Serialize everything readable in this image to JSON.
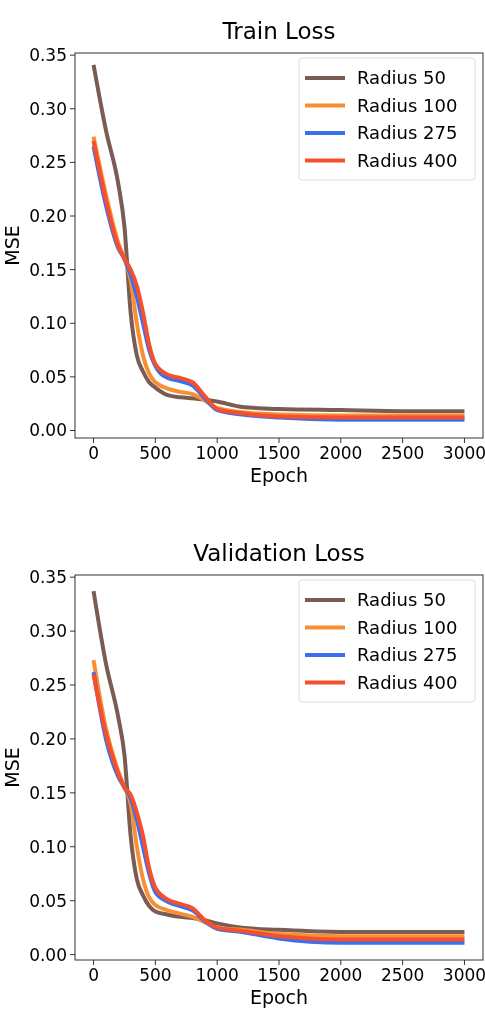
{
  "chart_data": [
    {
      "type": "line",
      "title": "Train Loss",
      "xlabel": "Epoch",
      "ylabel": "MSE",
      "x": [
        0,
        100,
        200,
        250,
        300,
        350,
        400,
        450,
        500,
        600,
        700,
        800,
        900,
        1000,
        1200,
        1500,
        2000,
        2500,
        3000
      ],
      "xlim": [
        -150,
        3150
      ],
      "xticks": [
        0,
        500,
        1000,
        1500,
        2000,
        2500,
        3000
      ],
      "ylim": [
        -0.007,
        0.352
      ],
      "yticks": [
        {
          "value": 0,
          "label": "0.00"
        },
        {
          "value": 0.05,
          "label": "0.05"
        },
        {
          "value": 0.1,
          "label": "0.10"
        },
        {
          "value": 0.15,
          "label": "0.15"
        },
        {
          "value": 0.2,
          "label": "0.20"
        },
        {
          "value": 0.25,
          "label": "0.25"
        },
        {
          "value": 0.3,
          "label": "0.30"
        },
        {
          "value": 0.35,
          "label": "0.35"
        }
      ],
      "grid": false,
      "legend": "top right",
      "series": [
        {
          "name": "Radius 50",
          "color": "#7a5c55",
          "values": [
            0.341,
            0.28,
            0.23,
            0.19,
            0.11,
            0.07,
            0.055,
            0.045,
            0.04,
            0.033,
            0.031,
            0.03,
            0.029,
            0.027,
            0.022,
            0.02,
            0.019,
            0.018,
            0.018
          ]
        },
        {
          "name": "Radius 100",
          "color": "#f98f33",
          "values": [
            0.274,
            0.22,
            0.175,
            0.16,
            0.14,
            0.1,
            0.07,
            0.053,
            0.045,
            0.039,
            0.036,
            0.034,
            0.028,
            0.021,
            0.017,
            0.015,
            0.014,
            0.014,
            0.014
          ]
        },
        {
          "name": "Radius 275",
          "color": "#3a70ee",
          "values": [
            0.265,
            0.21,
            0.17,
            0.16,
            0.145,
            0.125,
            0.1,
            0.075,
            0.06,
            0.049,
            0.046,
            0.042,
            0.03,
            0.019,
            0.015,
            0.012,
            0.01,
            0.01,
            0.01
          ]
        },
        {
          "name": "Radius 400",
          "color": "#f4502e",
          "values": [
            0.27,
            0.215,
            0.172,
            0.16,
            0.15,
            0.135,
            0.11,
            0.08,
            0.062,
            0.052,
            0.049,
            0.045,
            0.032,
            0.02,
            0.016,
            0.013,
            0.012,
            0.012,
            0.012
          ]
        }
      ]
    },
    {
      "type": "line",
      "title": "Validation Loss",
      "xlabel": "Epoch",
      "ylabel": "MSE",
      "x": [
        0,
        100,
        200,
        250,
        300,
        350,
        400,
        450,
        500,
        600,
        700,
        800,
        900,
        1000,
        1200,
        1500,
        2000,
        2500,
        3000
      ],
      "xlim": [
        -150,
        3150
      ],
      "xticks": [
        0,
        500,
        1000,
        1500,
        2000,
        2500,
        3000
      ],
      "ylim": [
        -0.005,
        0.352
      ],
      "yticks": [
        {
          "value": 0,
          "label": "0.00"
        },
        {
          "value": 0.05,
          "label": "0.05"
        },
        {
          "value": 0.1,
          "label": "0.10"
        },
        {
          "value": 0.15,
          "label": "0.15"
        },
        {
          "value": 0.2,
          "label": "0.20"
        },
        {
          "value": 0.25,
          "label": "0.25"
        },
        {
          "value": 0.3,
          "label": "0.30"
        },
        {
          "value": 0.35,
          "label": "0.35"
        }
      ],
      "grid": false,
      "legend": "top right",
      "series": [
        {
          "name": "Radius 50",
          "color": "#7a5c55",
          "values": [
            0.337,
            0.27,
            0.22,
            0.185,
            0.11,
            0.07,
            0.055,
            0.045,
            0.04,
            0.037,
            0.035,
            0.034,
            0.032,
            0.029,
            0.025,
            0.023,
            0.021,
            0.021,
            0.021
          ]
        },
        {
          "name": "Radius 100",
          "color": "#f98f33",
          "values": [
            0.273,
            0.21,
            0.17,
            0.155,
            0.14,
            0.1,
            0.07,
            0.053,
            0.046,
            0.041,
            0.038,
            0.035,
            0.03,
            0.025,
            0.023,
            0.019,
            0.017,
            0.017,
            0.017
          ]
        },
        {
          "name": "Radius 275",
          "color": "#3a70ee",
          "values": [
            0.262,
            0.2,
            0.165,
            0.155,
            0.145,
            0.125,
            0.1,
            0.075,
            0.058,
            0.049,
            0.045,
            0.041,
            0.031,
            0.024,
            0.021,
            0.015,
            0.011,
            0.011,
            0.011
          ]
        },
        {
          "name": "Radius 400",
          "color": "#f4502e",
          "values": [
            0.26,
            0.205,
            0.168,
            0.155,
            0.148,
            0.132,
            0.11,
            0.08,
            0.062,
            0.051,
            0.047,
            0.043,
            0.032,
            0.025,
            0.022,
            0.017,
            0.014,
            0.014,
            0.014
          ]
        }
      ]
    }
  ]
}
